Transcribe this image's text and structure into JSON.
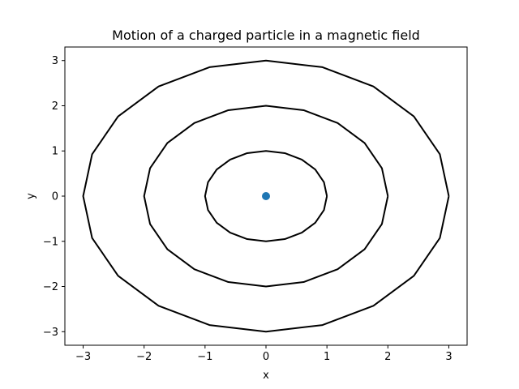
{
  "chart_data": {
    "type": "line",
    "title": "Motion of a charged particle in a magnetic field",
    "xlabel": "x",
    "ylabel": "y",
    "xlim": [
      -3.3,
      3.3
    ],
    "ylim": [
      -3.3,
      3.3
    ],
    "xticks": [
      -3,
      -2,
      -1,
      0,
      1,
      2,
      3
    ],
    "yticks": [
      -3,
      -2,
      -1,
      0,
      1,
      2,
      3
    ],
    "xtick_labels": [
      "−3",
      "−2",
      "−1",
      "0",
      "1",
      "2",
      "3"
    ],
    "ytick_labels": [
      "−3",
      "−2",
      "−1",
      "0",
      "1",
      "2",
      "3"
    ],
    "grid": false,
    "series": [
      {
        "color": "#000000",
        "x": [
          1,
          0.951,
          0.809,
          0.588,
          0.309,
          0,
          -0.309,
          -0.588,
          -0.809,
          -0.951,
          -1,
          -0.951,
          -0.809,
          -0.588,
          -0.309,
          0,
          0.309,
          0.588,
          0.809,
          0.951,
          1
        ],
        "y": [
          0,
          0.309,
          0.588,
          0.809,
          0.951,
          1,
          0.951,
          0.809,
          0.588,
          0.309,
          0,
          -0.309,
          -0.588,
          -0.809,
          -0.951,
          -1,
          -0.951,
          -0.809,
          -0.588,
          -0.309,
          0
        ]
      },
      {
        "color": "#000000",
        "x": [
          2,
          1.902,
          1.618,
          1.176,
          0.618,
          0,
          -0.618,
          -1.176,
          -1.618,
          -1.902,
          -2,
          -1.902,
          -1.618,
          -1.176,
          -0.618,
          0,
          0.618,
          1.176,
          1.618,
          1.902,
          2
        ],
        "y": [
          0,
          0.618,
          1.176,
          1.618,
          1.902,
          2,
          1.902,
          1.618,
          1.176,
          0.618,
          0,
          -0.618,
          -1.176,
          -1.618,
          -1.902,
          -2,
          -1.902,
          -1.618,
          -1.176,
          -0.618,
          0
        ]
      },
      {
        "color": "#000000",
        "x": [
          3,
          2.853,
          2.427,
          1.763,
          0.927,
          0,
          -0.927,
          -1.763,
          -2.427,
          -2.853,
          -3,
          -2.853,
          -2.427,
          -1.763,
          -0.927,
          0,
          0.927,
          1.763,
          2.427,
          2.853,
          3
        ],
        "y": [
          0,
          0.927,
          1.763,
          2.427,
          2.853,
          3,
          2.853,
          2.427,
          1.763,
          0.927,
          0,
          -0.927,
          -1.763,
          -2.427,
          -2.853,
          -3,
          -2.853,
          -2.427,
          -1.763,
          -0.927,
          0
        ]
      }
    ],
    "scatter": [
      {
        "x": 0,
        "y": 0,
        "color": "#1f77b4"
      }
    ]
  }
}
